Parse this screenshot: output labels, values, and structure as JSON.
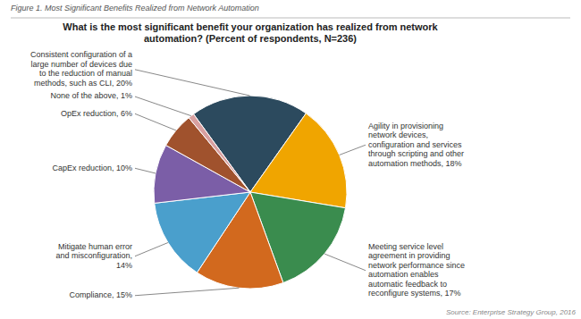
{
  "chart_data": {
    "type": "pie",
    "title": "What is the most significant benefit your organization has realized from network\nautomation? (Percent of respondents, N=236)",
    "annotations": [
      "Figure 1. Most Significant Benefits Realized from Network Automation",
      "Source: Enterprise Strategy Group, 2016"
    ],
    "categories": [
      "Consistent configuration of a\nlarge number of devices due\nto the reduction of manual\nmethods, such as CLI, 20%",
      "Agility in provisioning\nnetwork devices,\nconfiguration and services\nthrough scripting and other\nautomation methods, 18%",
      "Meeting service level\nagreement in providing\nnetwork performance since\nautomation enables\nautomatic feedback to\nreconfigure systems, 17%",
      "Compliance, 15%",
      "Mitigate human error\nand misconfiguration,\n14%",
      "CapEx reduction, 10%",
      "OpEx reduction, 6%",
      "None of the above, 1%"
    ],
    "values": [
      20,
      18,
      17,
      15,
      14,
      10,
      6,
      1
    ],
    "colors": [
      "#2c4a5e",
      "#f0a500",
      "#3a8c4e",
      "#d2691e",
      "#4a9fcc",
      "#7b5ea7",
      "#a0522d",
      "#d8a0a0"
    ]
  }
}
